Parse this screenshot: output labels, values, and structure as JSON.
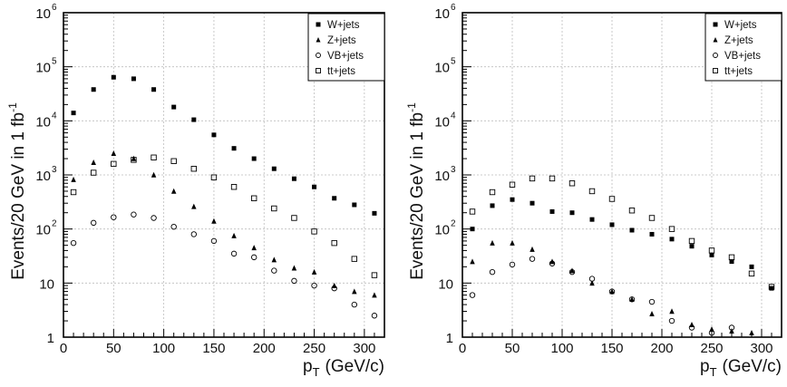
{
  "chart_data": [
    {
      "type": "scatter",
      "title": "",
      "xlabel_main": "p",
      "xlabel_sub": "T",
      "xlabel_unit": "(GeV/c)",
      "ylabel": "Events/20 GeV in 1 fb",
      "ylabel_sup": "-1",
      "xlim": [
        0,
        320
      ],
      "ylim": [
        1,
        1000000
      ],
      "yscale": "log",
      "grid": true,
      "legend": "top-right",
      "x_ticks": [
        "0",
        "50",
        "100",
        "150",
        "200",
        "250",
        "300"
      ],
      "y_ticks": [
        {
          "base": "1",
          "exp": ""
        },
        {
          "base": "10",
          "exp": ""
        },
        {
          "base": "10",
          "exp": "2"
        },
        {
          "base": "10",
          "exp": "3"
        },
        {
          "base": "10",
          "exp": "4"
        },
        {
          "base": "10",
          "exp": "5"
        },
        {
          "base": "10",
          "exp": "6"
        }
      ],
      "x": [
        10,
        30,
        50,
        70,
        90,
        110,
        130,
        150,
        170,
        190,
        210,
        230,
        250,
        270,
        290,
        310
      ],
      "series": [
        {
          "name": "W+jets",
          "marker": "filled-square",
          "values": [
            14000,
            38000,
            64000,
            60000,
            38000,
            18000,
            10500,
            5500,
            3100,
            2000,
            1300,
            850,
            600,
            370,
            280,
            195
          ]
        },
        {
          "name": "Z+jets",
          "marker": "filled-triangle",
          "values": [
            820,
            1700,
            2500,
            2000,
            1000,
            500,
            260,
            140,
            75,
            45,
            27,
            19,
            16,
            9,
            7,
            6
          ]
        },
        {
          "name": "VB+jets",
          "marker": "open-circle",
          "values": [
            55,
            130,
            165,
            185,
            160,
            110,
            80,
            60,
            35,
            30,
            17,
            11,
            9,
            8,
            4,
            2.5
          ]
        },
        {
          "name": "tt+jets",
          "marker": "open-square",
          "values": [
            480,
            1100,
            1600,
            1900,
            2100,
            1800,
            1300,
            900,
            600,
            370,
            240,
            160,
            90,
            55,
            28,
            14
          ]
        }
      ]
    },
    {
      "type": "scatter",
      "title": "",
      "xlabel_main": "p",
      "xlabel_sub": "T",
      "xlabel_unit": "(GeV/c)",
      "ylabel": "Events/20 GeV in 1 fb",
      "ylabel_sup": "-1",
      "xlim": [
        0,
        320
      ],
      "ylim": [
        1,
        1000000
      ],
      "yscale": "log",
      "grid": true,
      "legend": "top-right",
      "x_ticks": [
        "0",
        "50",
        "100",
        "150",
        "200",
        "250",
        "300"
      ],
      "y_ticks": [
        {
          "base": "1",
          "exp": ""
        },
        {
          "base": "10",
          "exp": ""
        },
        {
          "base": "10",
          "exp": "2"
        },
        {
          "base": "10",
          "exp": "3"
        },
        {
          "base": "10",
          "exp": "4"
        },
        {
          "base": "10",
          "exp": "5"
        },
        {
          "base": "10",
          "exp": "6"
        }
      ],
      "x": [
        10,
        30,
        50,
        70,
        90,
        110,
        130,
        150,
        170,
        190,
        210,
        230,
        250,
        270,
        290,
        310
      ],
      "series": [
        {
          "name": "W+jets",
          "marker": "filled-square",
          "values": [
            100,
            270,
            350,
            300,
            210,
            200,
            150,
            120,
            95,
            80,
            65,
            48,
            33,
            25,
            20,
            8
          ]
        },
        {
          "name": "Z+jets",
          "marker": "filled-triangle",
          "values": [
            25,
            55,
            55,
            42,
            25,
            17,
            10,
            7,
            5,
            2.7,
            3,
            1.7,
            1.4,
            1.3,
            1.2,
            null
          ]
        },
        {
          "name": "VB+jets",
          "marker": "open-circle",
          "values": [
            6,
            16,
            22,
            28,
            23,
            16,
            12,
            7,
            5,
            4.5,
            2,
            1.5,
            1.2,
            1.5,
            null,
            null
          ]
        },
        {
          "name": "tt+jets",
          "marker": "open-square",
          "values": [
            210,
            480,
            660,
            860,
            860,
            700,
            500,
            360,
            220,
            160,
            100,
            60,
            40,
            30,
            15,
            8.5
          ]
        }
      ]
    }
  ]
}
